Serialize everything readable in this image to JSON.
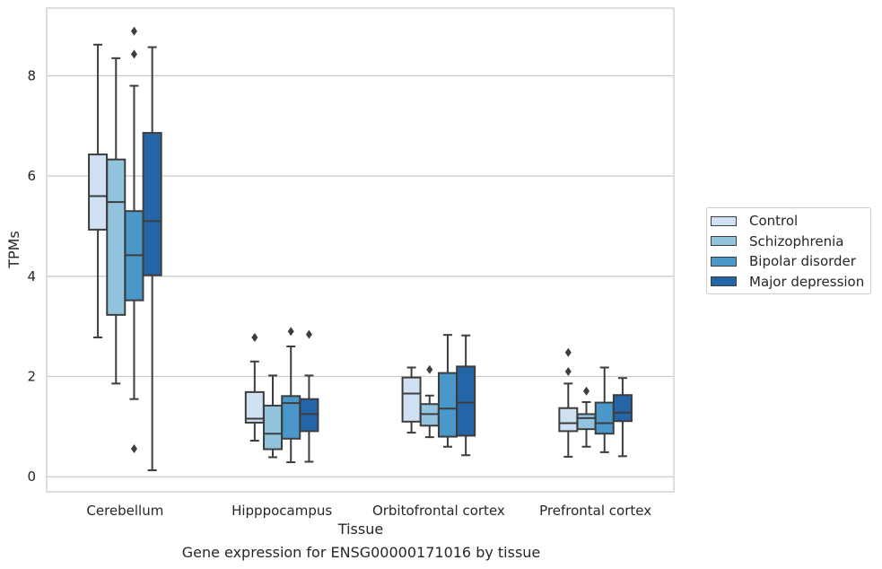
{
  "chart_data": {
    "type": "box",
    "title": "",
    "caption": "Gene expression for ENSG00000171016 by tissue",
    "xlabel": "Tissue",
    "ylabel": "TPMs",
    "ylim": [
      -0.3,
      9.35
    ],
    "yticks": [
      0,
      2,
      4,
      6,
      8
    ],
    "grid": "horizontal",
    "legend_position": "right",
    "categories": [
      "Cerebellum",
      "Hipppocampus",
      "Orbitofrontal cortex",
      "Prefrontal cortex"
    ],
    "series": [
      {
        "name": "Control",
        "color": "#cfe1f2",
        "boxes": [
          {
            "whislo": 2.78,
            "q1": 4.93,
            "med": 5.6,
            "q3": 6.43,
            "whishi": 8.62,
            "fliers": []
          },
          {
            "whislo": 0.72,
            "q1": 1.08,
            "med": 1.16,
            "q3": 1.69,
            "whishi": 2.3,
            "fliers": [
              2.78
            ]
          },
          {
            "whislo": 0.88,
            "q1": 1.1,
            "med": 1.66,
            "q3": 1.98,
            "whishi": 2.18,
            "fliers": []
          },
          {
            "whislo": 0.4,
            "q1": 0.91,
            "med": 1.07,
            "q3": 1.37,
            "whishi": 1.86,
            "fliers": [
              2.1,
              2.48
            ]
          }
        ]
      },
      {
        "name": "Schizophrenia",
        "color": "#93c4de",
        "boxes": [
          {
            "whislo": 1.86,
            "q1": 3.23,
            "med": 5.48,
            "q3": 6.33,
            "whishi": 8.35,
            "fliers": []
          },
          {
            "whislo": 0.39,
            "q1": 0.55,
            "med": 0.86,
            "q3": 1.42,
            "whishi": 2.02,
            "fliers": []
          },
          {
            "whislo": 0.79,
            "q1": 1.02,
            "med": 1.25,
            "q3": 1.45,
            "whishi": 1.62,
            "fliers": [
              2.14
            ]
          },
          {
            "whislo": 0.6,
            "q1": 0.95,
            "med": 1.17,
            "q3": 1.25,
            "whishi": 1.49,
            "fliers": [
              1.71
            ]
          }
        ]
      },
      {
        "name": "Bipolar disorder",
        "color": "#4a98c9",
        "boxes": [
          {
            "whislo": 1.55,
            "q1": 3.52,
            "med": 4.42,
            "q3": 5.3,
            "whishi": 7.8,
            "fliers": [
              0.56,
              8.43,
              8.89
            ]
          },
          {
            "whislo": 0.29,
            "q1": 0.76,
            "med": 1.47,
            "q3": 1.61,
            "whishi": 2.6,
            "fliers": [
              2.9
            ]
          },
          {
            "whislo": 0.6,
            "q1": 0.8,
            "med": 1.36,
            "q3": 2.07,
            "whishi": 2.83,
            "fliers": []
          },
          {
            "whislo": 0.49,
            "q1": 0.86,
            "med": 1.07,
            "q3": 1.48,
            "whishi": 2.18,
            "fliers": []
          }
        ]
      },
      {
        "name": "Major depression",
        "color": "#2465a8",
        "boxes": [
          {
            "whislo": 0.13,
            "q1": 4.02,
            "med": 5.1,
            "q3": 6.86,
            "whishi": 8.57,
            "fliers": []
          },
          {
            "whislo": 0.3,
            "q1": 0.91,
            "med": 1.25,
            "q3": 1.55,
            "whishi": 2.02,
            "fliers": [
              2.84
            ]
          },
          {
            "whislo": 0.43,
            "q1": 0.82,
            "med": 1.48,
            "q3": 2.2,
            "whishi": 2.82,
            "fliers": []
          },
          {
            "whislo": 0.41,
            "q1": 1.11,
            "med": 1.28,
            "q3": 1.63,
            "whishi": 1.97,
            "fliers": []
          }
        ]
      }
    ]
  }
}
